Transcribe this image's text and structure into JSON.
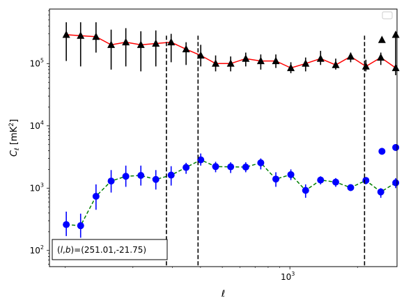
{
  "chart_data": {
    "type": "scatter",
    "xlabel": "ℓ",
    "ylabel": "C",
    "ylabel_sub": "ℓ",
    "ylabel_unit": "[mK",
    "ylabel_unit_sup": "2",
    "ylabel_unit_close": "]",
    "xscale": "log",
    "yscale": "log",
    "xlim": [
      85,
      3000
    ],
    "ylim": [
      55,
      750000
    ],
    "xticks": [
      {
        "value": 1000,
        "base": "10",
        "exp": "3"
      }
    ],
    "yticks": [
      {
        "value": 100,
        "base": "10",
        "exp": "2"
      },
      {
        "value": 1000,
        "base": "10",
        "exp": "3"
      },
      {
        "value": 10000,
        "base": "10",
        "exp": "4"
      },
      {
        "value": 100000,
        "base": "10",
        "exp": "5"
      }
    ],
    "vlines": [
      282,
      390,
      2150
    ],
    "annotation": {
      "prefix": "(",
      "l": "l",
      "comma": ",",
      "b": "b",
      "suffix": ")=(251.01,-21.75)"
    },
    "legend": {
      "position": "top-right",
      "entries": []
    },
    "series": [
      {
        "marker": "triangle",
        "color": "#000000",
        "line_color": "#ff0000",
        "line_style": "solid",
        "x": [
          101,
          117,
          137,
          160,
          186,
          217,
          253,
          296,
          345,
          401,
          467,
          545,
          636,
          742,
          866,
          1010,
          1175,
          1370,
          1600,
          1865,
          2180,
          2540,
          2960
        ],
        "y": [
          290000,
          280000,
          270000,
          200000,
          220000,
          200000,
          210000,
          220000,
          170000,
          135000,
          100000,
          100000,
          120000,
          110000,
          110000,
          85000,
          100000,
          120000,
          95000,
          130000,
          90000,
          125000,
          85000
        ],
        "err_lo": [
          110000,
          90000,
          150000,
          80000,
          90000,
          75000,
          90000,
          105000,
          95000,
          90000,
          75000,
          75000,
          90000,
          80000,
          85000,
          70000,
          75000,
          95000,
          80000,
          105000,
          75000,
          95000,
          65000
        ],
        "err_hi": [
          460000,
          460000,
          460000,
          350000,
          370000,
          330000,
          340000,
          300000,
          220000,
          200000,
          135000,
          130000,
          150000,
          140000,
          140000,
          105000,
          125000,
          160000,
          120000,
          150000,
          115000,
          150000,
          280000
        ],
        "extra_x": [
          2570,
          2960
        ],
        "extra_y": [
          240000,
          290000
        ]
      },
      {
        "marker": "circle",
        "color": "#0000ff",
        "line_color": "#008000",
        "line_style": "dashed",
        "x": [
          101,
          117,
          137,
          160,
          186,
          217,
          253,
          296,
          345,
          401,
          467,
          545,
          636,
          742,
          866,
          1010,
          1175,
          1370,
          1600,
          1865,
          2180,
          2540,
          2960
        ],
        "y": [
          260,
          250,
          740,
          1300,
          1550,
          1600,
          1380,
          1620,
          2150,
          2850,
          2220,
          2200,
          2180,
          2550,
          1400,
          1650,
          920,
          1350,
          1250,
          1020,
          1330,
          870,
          1220
        ],
        "err_lo": [
          170,
          160,
          450,
          850,
          1050,
          1100,
          950,
          1100,
          1700,
          2300,
          1800,
          1750,
          1800,
          2000,
          1050,
          1350,
          700,
          1150,
          1050,
          900,
          1150,
          700,
          1000
        ],
        "err_hi": [
          420,
          390,
          1150,
          1950,
          2300,
          2300,
          1950,
          2250,
          2550,
          3600,
          2650,
          2600,
          2600,
          3000,
          1800,
          2000,
          1150,
          1550,
          1450,
          1150,
          1500,
          1000,
          1450
        ],
        "extra_x": [
          2570,
          2960
        ],
        "extra_y": [
          3900,
          4500
        ]
      }
    ]
  }
}
